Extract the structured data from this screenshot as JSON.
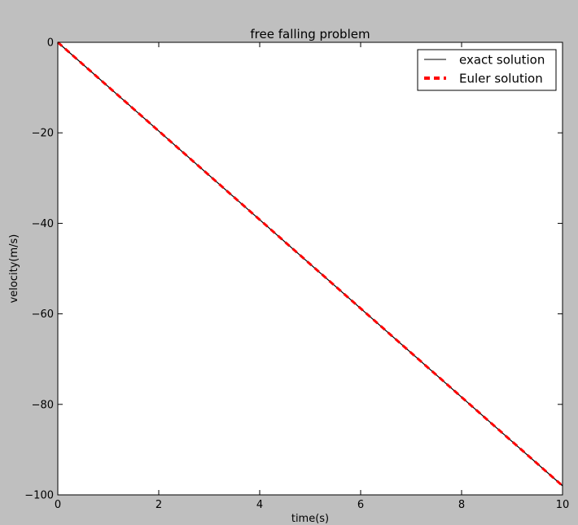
{
  "figure": {
    "background": "#bfbfbf",
    "plot_background": "#ffffff"
  },
  "chart_data": {
    "type": "line",
    "title": "free falling problem",
    "xlabel": "time(s)",
    "ylabel": "velocity(m/s)",
    "xlim": [
      0,
      10
    ],
    "ylim": [
      -100,
      0
    ],
    "xticks": [
      0,
      2,
      4,
      6,
      8,
      10
    ],
    "yticks": [
      0,
      -20,
      -40,
      -60,
      -80,
      -100
    ],
    "xtick_labels": [
      "0",
      "2",
      "4",
      "6",
      "8",
      "10"
    ],
    "ytick_labels": [
      "0",
      "−20",
      "−40",
      "−60",
      "−80",
      "−100"
    ],
    "grid": false,
    "legend": "top-right",
    "series": [
      {
        "name": "exact solution",
        "color": "#000000",
        "style": "solid",
        "x": [
          0,
          10
        ],
        "y": [
          0,
          -98
        ]
      },
      {
        "name": "Euler solution",
        "color": "#ff0000",
        "style": "dashed",
        "x": [
          0,
          10
        ],
        "y": [
          0,
          -98
        ]
      }
    ]
  }
}
